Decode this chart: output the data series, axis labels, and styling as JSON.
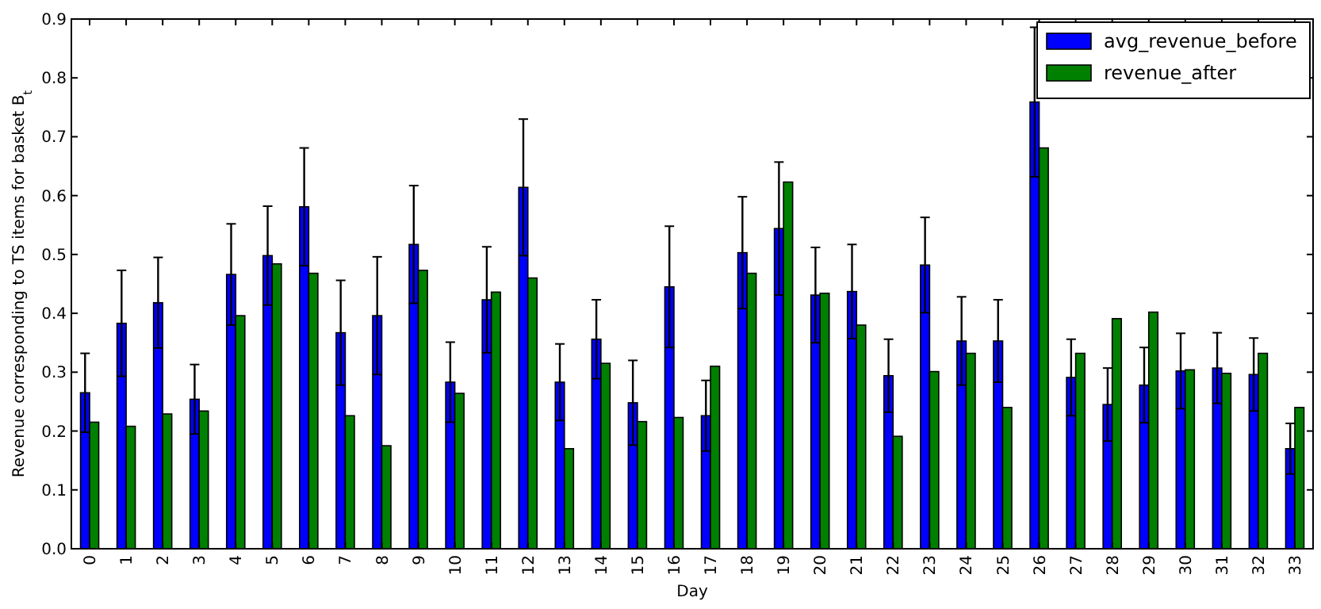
{
  "chart_data": {
    "type": "bar",
    "xlabel": "Day",
    "ylabel": "Revenue corresponding to TS items for basket B$_{t}$",
    "categories": [
      "0",
      "1",
      "2",
      "3",
      "4",
      "5",
      "6",
      "7",
      "8",
      "9",
      "10",
      "11",
      "12",
      "13",
      "14",
      "15",
      "16",
      "17",
      "18",
      "19",
      "20",
      "21",
      "22",
      "23",
      "24",
      "25",
      "26",
      "27",
      "28",
      "29",
      "30",
      "31",
      "32",
      "33"
    ],
    "series": [
      {
        "name": "avg_revenue_before",
        "color": "#0000ff",
        "values": [
          0.265,
          0.383,
          0.418,
          0.254,
          0.466,
          0.498,
          0.581,
          0.367,
          0.396,
          0.517,
          0.283,
          0.423,
          0.614,
          0.283,
          0.356,
          0.248,
          0.445,
          0.226,
          0.503,
          0.544,
          0.431,
          0.437,
          0.294,
          0.482,
          0.353,
          0.353,
          0.759,
          0.291,
          0.245,
          0.278,
          0.302,
          0.307,
          0.296,
          0.17
        ],
        "errors": [
          0.067,
          0.09,
          0.077,
          0.059,
          0.086,
          0.084,
          0.1,
          0.089,
          0.1,
          0.1,
          0.068,
          0.09,
          0.116,
          0.065,
          0.067,
          0.072,
          0.103,
          0.06,
          0.095,
          0.113,
          0.081,
          0.08,
          0.062,
          0.081,
          0.075,
          0.07,
          0.127,
          0.065,
          0.062,
          0.064,
          0.064,
          0.06,
          0.062,
          0.043
        ]
      },
      {
        "name": "revenue_after",
        "color": "#008000",
        "values": [
          0.215,
          0.208,
          0.229,
          0.234,
          0.396,
          0.484,
          0.468,
          0.226,
          0.175,
          0.473,
          0.264,
          0.436,
          0.46,
          0.17,
          0.315,
          0.216,
          0.223,
          0.31,
          0.468,
          0.623,
          0.434,
          0.38,
          0.191,
          0.301,
          0.332,
          0.24,
          0.681,
          0.332,
          0.391,
          0.402,
          0.304,
          0.298,
          0.332,
          0.24
        ]
      }
    ],
    "ylim": [
      0,
      0.9
    ],
    "yticks": [
      {
        "value": 0,
        "label": "0.0"
      },
      0.1,
      0.2,
      0.3,
      0.4,
      0.5,
      0.6,
      0.7,
      0.8,
      0.9
    ],
    "legend": "top right",
    "grid": false
  }
}
